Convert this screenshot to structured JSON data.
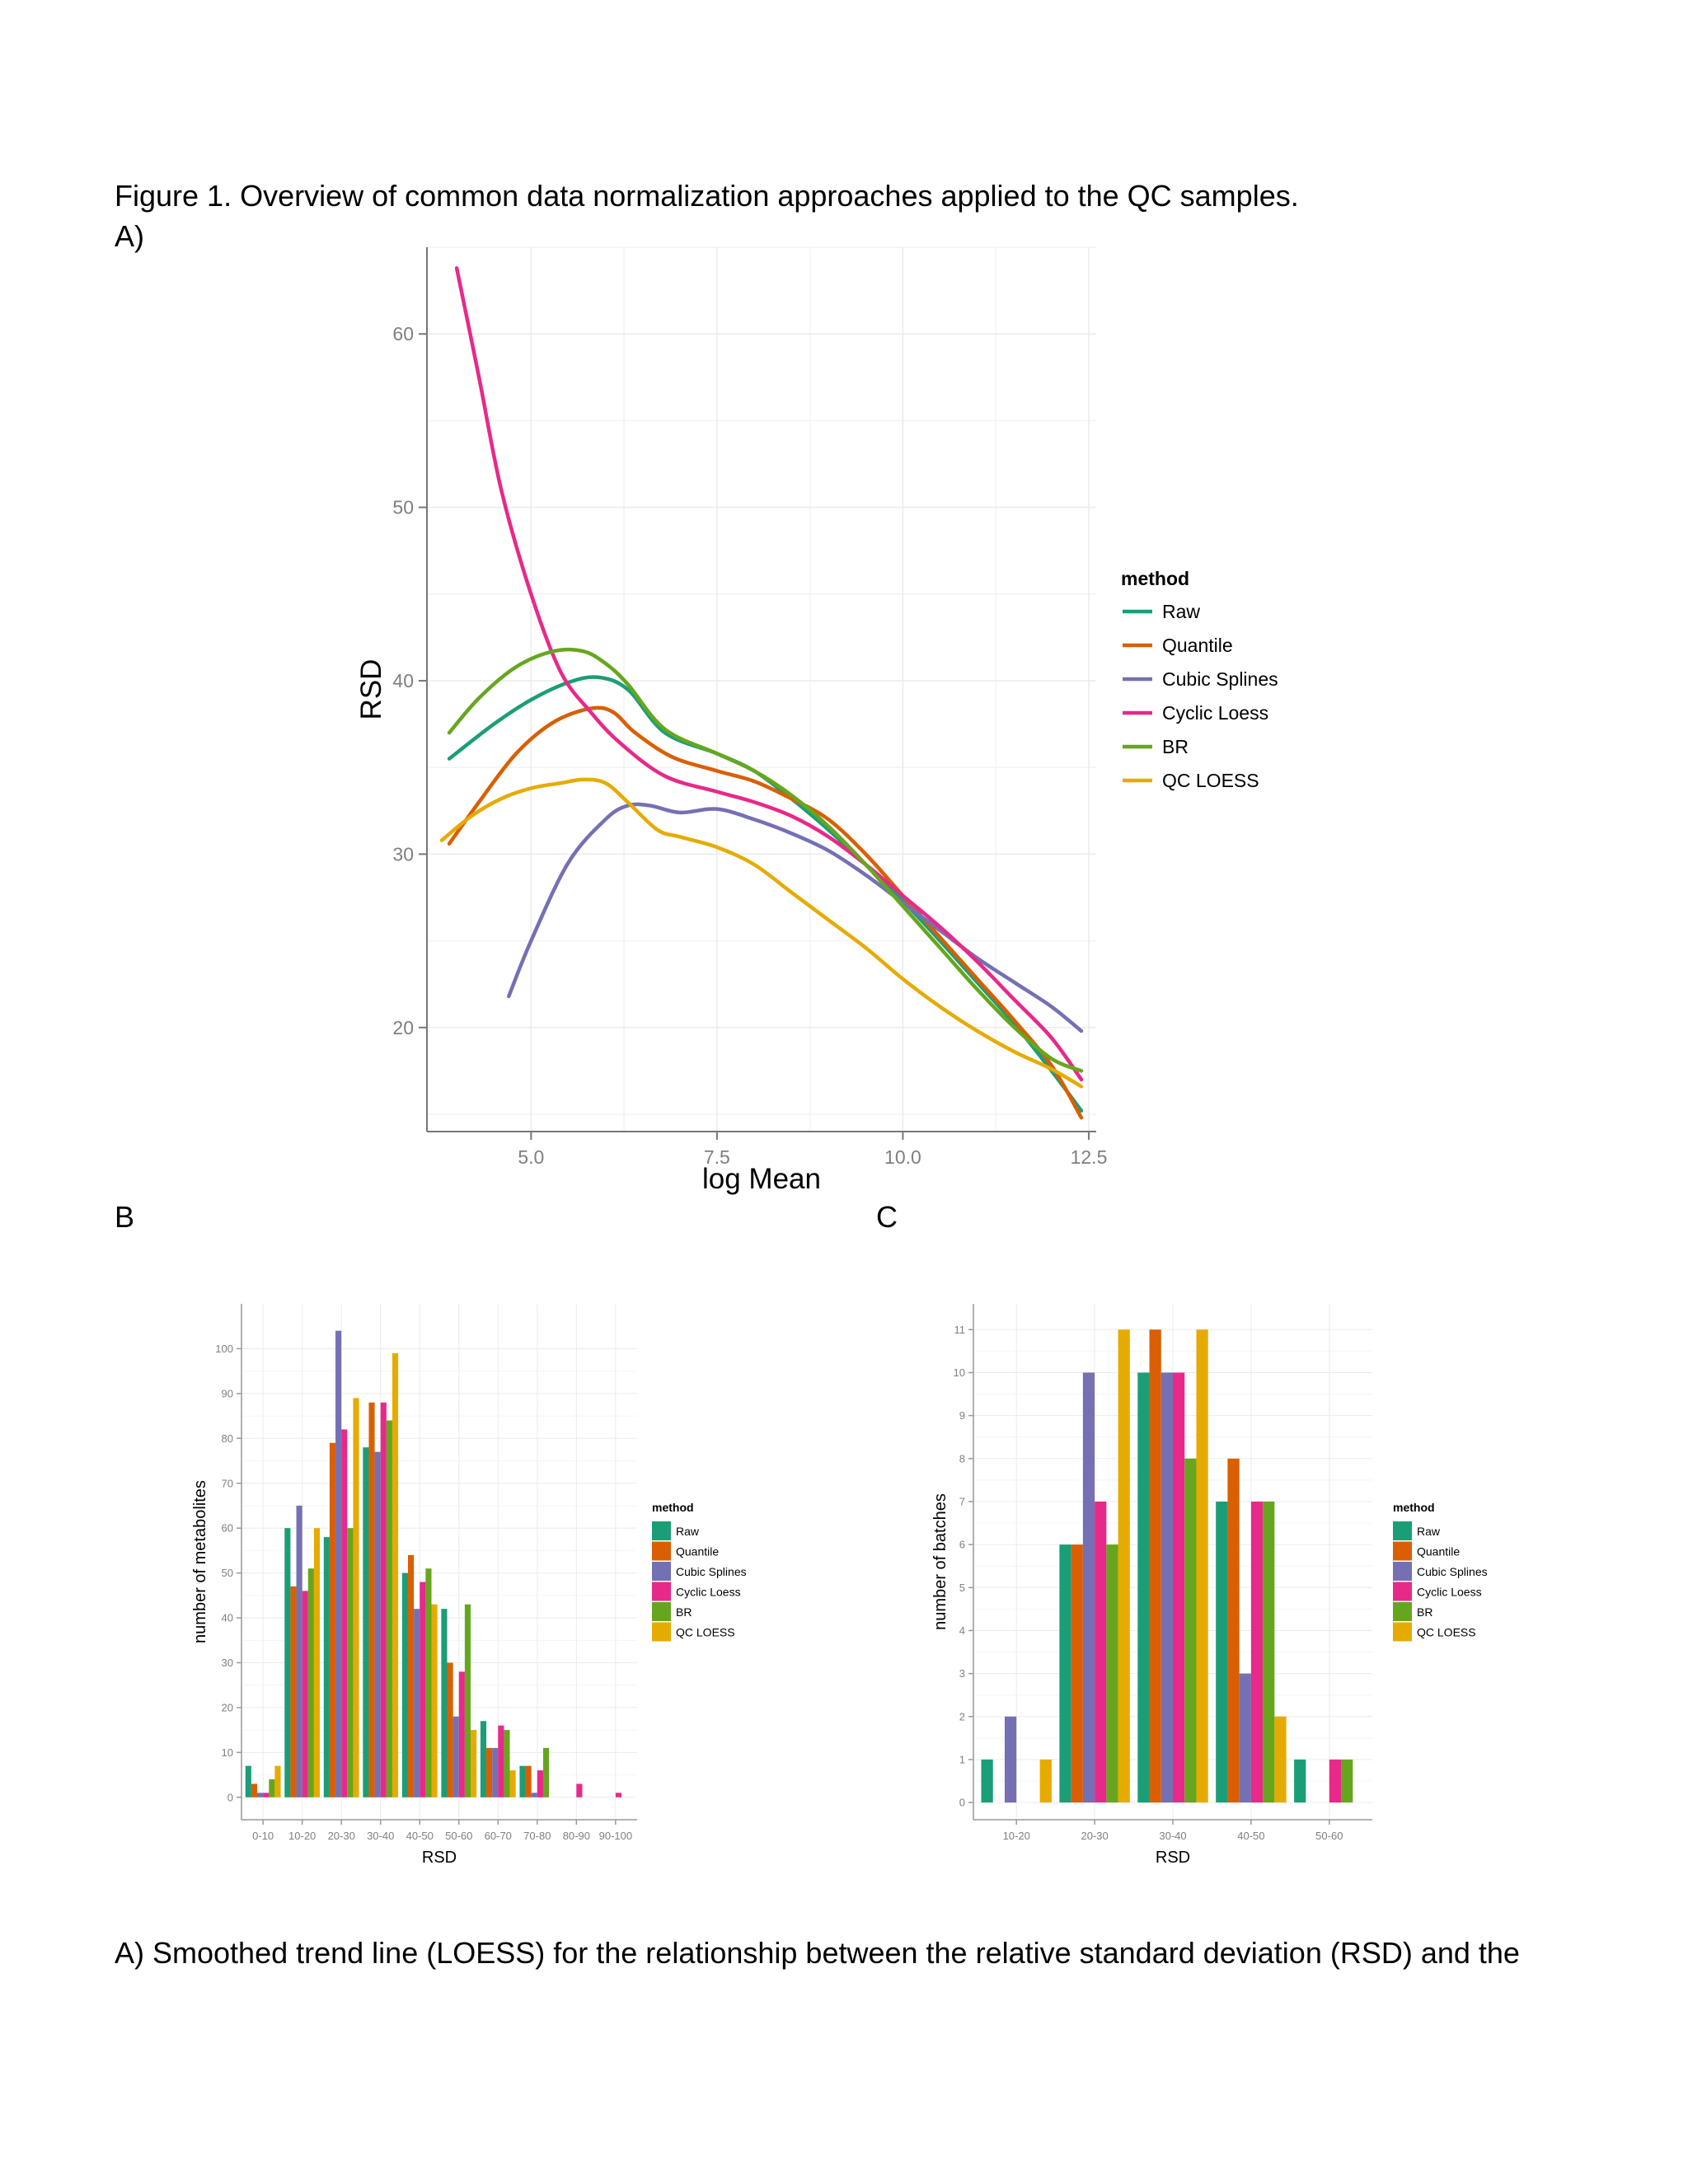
{
  "figure": {
    "title": "Figure 1. Overview of common data normalization approaches applied to the QC samples.",
    "label_a": "A)",
    "label_b": "B",
    "label_c": "C",
    "caption": "A) Smoothed trend line (LOESS) for the relationship between the relative standard deviation (RSD) and the"
  },
  "colors": {
    "Raw": "#1b9e77",
    "Quantile": "#d95f02",
    "Cubic Splines": "#7570b3",
    "Cyclic Loess": "#e7298a",
    "BR": "#66a61e",
    "QC LOESS": "#e6ab02"
  },
  "chart_data": [
    {
      "id": "A",
      "type": "line",
      "xlabel": "log Mean",
      "ylabel": "RSD",
      "xlim": [
        3.6,
        12.6
      ],
      "ylim": [
        14,
        65
      ],
      "xticks": [
        "5.0",
        "7.5",
        "10.0",
        "12.5"
      ],
      "yticks": [
        "20",
        "30",
        "40",
        "50",
        "60"
      ],
      "legend_title": "method",
      "legend_position": "right",
      "grid": true,
      "series": [
        {
          "name": "Raw",
          "x": [
            3.9,
            4.5,
            5.0,
            5.5,
            5.9,
            6.3,
            6.8,
            7.5,
            8.0,
            8.5,
            9.0,
            9.5,
            10.0,
            10.5,
            11.0,
            11.5,
            12.0,
            12.4
          ],
          "y": [
            35.5,
            37.5,
            38.9,
            39.9,
            40.2,
            39.5,
            37.0,
            35.8,
            34.8,
            33.2,
            31.4,
            29.4,
            27.3,
            25.0,
            22.6,
            20.2,
            17.5,
            15.2
          ]
        },
        {
          "name": "Quantile",
          "x": [
            3.9,
            4.3,
            4.8,
            5.3,
            5.8,
            6.1,
            6.4,
            6.9,
            7.5,
            8.0,
            8.5,
            9.0,
            9.5,
            10.0,
            10.5,
            11.0,
            11.5,
            12.0,
            12.4
          ],
          "y": [
            30.6,
            33.0,
            35.8,
            37.6,
            38.4,
            38.2,
            37.0,
            35.6,
            34.8,
            34.2,
            33.2,
            32.0,
            30.0,
            27.6,
            25.2,
            22.8,
            20.4,
            17.8,
            14.8
          ]
        },
        {
          "name": "Cubic Splines",
          "x": [
            4.7,
            5.0,
            5.5,
            6.0,
            6.3,
            6.6,
            7.0,
            7.5,
            8.0,
            8.5,
            9.0,
            9.5,
            10.0,
            10.5,
            11.0,
            11.5,
            12.0,
            12.4
          ],
          "y": [
            21.8,
            25.0,
            29.5,
            32.0,
            32.8,
            32.8,
            32.4,
            32.6,
            32.0,
            31.2,
            30.2,
            28.8,
            27.2,
            25.6,
            24.0,
            22.6,
            21.2,
            19.8
          ]
        },
        {
          "name": "Cyclic Loess",
          "x": [
            4.0,
            4.3,
            4.6,
            5.0,
            5.4,
            5.8,
            6.2,
            6.8,
            7.5,
            8.0,
            8.5,
            9.0,
            9.5,
            10.0,
            10.5,
            11.0,
            11.5,
            12.0,
            12.4
          ],
          "y": [
            63.8,
            57.5,
            51.0,
            45.0,
            40.5,
            38.2,
            36.4,
            34.5,
            33.6,
            33.0,
            32.2,
            31.0,
            29.4,
            27.6,
            25.8,
            23.8,
            21.6,
            19.4,
            17.0
          ]
        },
        {
          "name": "BR",
          "x": [
            3.9,
            4.3,
            4.8,
            5.3,
            5.7,
            6.0,
            6.3,
            6.8,
            7.5,
            8.0,
            8.5,
            9.0,
            9.5,
            10.0,
            10.5,
            11.0,
            11.5,
            12.0,
            12.4
          ],
          "y": [
            37.0,
            39.0,
            40.8,
            41.7,
            41.7,
            41.0,
            39.8,
            37.2,
            35.8,
            34.8,
            33.4,
            31.6,
            29.4,
            27.0,
            24.6,
            22.2,
            20.0,
            18.2,
            17.5
          ]
        },
        {
          "name": "QC LOESS",
          "x": [
            3.8,
            4.2,
            4.6,
            5.0,
            5.4,
            5.7,
            6.0,
            6.3,
            6.7,
            7.0,
            7.5,
            8.0,
            8.5,
            9.0,
            9.5,
            10.0,
            10.5,
            11.0,
            11.5,
            12.0,
            12.4
          ],
          "y": [
            30.8,
            32.2,
            33.2,
            33.8,
            34.1,
            34.3,
            34.1,
            33.0,
            31.4,
            31.0,
            30.4,
            29.4,
            27.8,
            26.2,
            24.6,
            22.8,
            21.2,
            19.8,
            18.6,
            17.6,
            16.6
          ]
        }
      ]
    },
    {
      "id": "B",
      "type": "bar",
      "xlabel": "RSD",
      "ylabel": "number of metabolites",
      "ylim": [
        -5,
        110
      ],
      "yticks": [
        0,
        10,
        20,
        30,
        40,
        50,
        60,
        70,
        80,
        90,
        100
      ],
      "legend_title": "method",
      "legend_position": "right",
      "grid": true,
      "categories": [
        "0-10",
        "10-20",
        "20-30",
        "30-40",
        "40-50",
        "50-60",
        "60-70",
        "70-80",
        "80-90",
        "90-100"
      ],
      "series": [
        {
          "name": "Raw",
          "values": [
            7,
            60,
            58,
            78,
            50,
            42,
            17,
            7,
            0,
            0
          ]
        },
        {
          "name": "Quantile",
          "values": [
            3,
            47,
            79,
            88,
            54,
            30,
            11,
            7,
            0,
            0
          ]
        },
        {
          "name": "Cubic Splines",
          "values": [
            1,
            65,
            104,
            77,
            42,
            18,
            11,
            1,
            0,
            0
          ]
        },
        {
          "name": "Cyclic Loess",
          "values": [
            1,
            46,
            82,
            88,
            48,
            28,
            16,
            6,
            3,
            1
          ]
        },
        {
          "name": "BR",
          "values": [
            4,
            51,
            60,
            84,
            51,
            43,
            15,
            11,
            0,
            0
          ]
        },
        {
          "name": "QC LOESS",
          "values": [
            7,
            60,
            89,
            99,
            43,
            15,
            6,
            0,
            0,
            0
          ]
        }
      ]
    },
    {
      "id": "C",
      "type": "bar",
      "xlabel": "RSD",
      "ylabel": "number of batches",
      "ylim": [
        -0.4,
        11.6
      ],
      "yticks": [
        0,
        1,
        2,
        3,
        4,
        5,
        6,
        7,
        8,
        9,
        10,
        11
      ],
      "legend_title": "method",
      "legend_position": "right",
      "grid": true,
      "categories": [
        "10-20",
        "20-30",
        "30-40",
        "40-50",
        "50-60"
      ],
      "series": [
        {
          "name": "Raw",
          "values": [
            1,
            6,
            10,
            7,
            1
          ]
        },
        {
          "name": "Quantile",
          "values": [
            0,
            6,
            11,
            8,
            0
          ]
        },
        {
          "name": "Cubic Splines",
          "values": [
            2,
            10,
            10,
            3,
            0
          ]
        },
        {
          "name": "Cyclic Loess",
          "values": [
            0,
            7,
            10,
            7,
            1
          ]
        },
        {
          "name": "BR",
          "values": [
            0,
            6,
            8,
            7,
            1
          ]
        },
        {
          "name": "QC LOESS",
          "values": [
            1,
            11,
            11,
            2,
            0
          ]
        }
      ]
    }
  ]
}
